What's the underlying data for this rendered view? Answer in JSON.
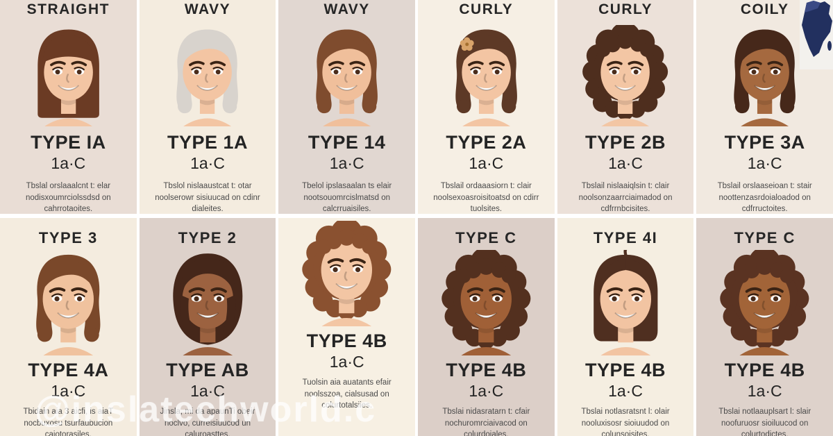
{
  "page": {
    "background": "#ffffff"
  },
  "watermark": {
    "text": "@inslatechworld.c"
  },
  "map_badge": {
    "icon": "africa-map-icon",
    "panel_color": "#f3f1ed",
    "shape_color": "#22305f"
  },
  "cards": [
    {
      "header": "STRAIGHT",
      "type": "TYPE IA",
      "sub": "1a·C",
      "desc": "Tbslal orslaaalcnt t: elar nodisxoumrciolssdsd on cahrrotaoites.",
      "bg": "#e9ddd5",
      "face": {
        "hair": "straight-bangs",
        "hair_color": "#6b3b24",
        "skin": "#f3c5a3"
      }
    },
    {
      "header": "WAVY",
      "type": "TYPE 1A",
      "sub": "1a·C",
      "desc": "Tbslol nislaaustcat t: otar noolserowr sisiuucad on cdinr dialeites.",
      "bg": "#f4ecdf",
      "face": {
        "hair": "wavy-long",
        "hair_color": "#d8d3cd",
        "skin": "#f3c5a3"
      }
    },
    {
      "header": "WAVY",
      "type": "TYPE 14",
      "sub": "1a·C",
      "desc": "Tbelol ipslasaalan ts elair nootsouomrcislmatsd on calcrruaisiles.",
      "bg": "#e1d7d1",
      "face": {
        "hair": "wavy-long",
        "hair_color": "#7f4c2e",
        "skin": "#f0bf9b"
      }
    },
    {
      "header": "CURLY",
      "type": "TYPE 2A",
      "sub": "1a·C",
      "desc": "Tbslail ordaaasiorn t: clair noolsexoasroisitoatsd on cdirr tuolsites.",
      "bg": "#f6efe4",
      "face": {
        "hair": "wavy-flower",
        "hair_color": "#5d3926",
        "skin": "#f3c5a3",
        "accent": "#d9a46a"
      }
    },
    {
      "header": "CURLY",
      "type": "TYPE 2B",
      "sub": "1a·C",
      "desc": "Tbslail nislaaiqlsin t: clair noolsonzaarrciaimadod on cdfrrnbcisites.",
      "bg": "#ece1d9",
      "face": {
        "hair": "curly-big",
        "hair_color": "#4e2e1e",
        "skin": "#f3c6a4"
      }
    },
    {
      "header": "COILY",
      "type": "TYPE 3A",
      "sub": "1a·C",
      "desc": "Tbslail orslaaseioan t: stair noottenzasrdoialoadod on cdfrructoites.",
      "bg": "#f1e9e0",
      "face": {
        "hair": "wavy-long",
        "hair_color": "#46281a",
        "skin": "#a5693f"
      }
    },
    {
      "header": "TYPE 3",
      "type": "TYPE 4A",
      "sub": "1a·C",
      "desc": "Tbidain aia 3 aicfi, is aiaT nocbuxosu tsurfaubucion caiotorasiles.",
      "bg": "#f4ecdf",
      "face": {
        "hair": "wavy-long",
        "hair_color": "#7a482a",
        "skin": "#f0c29e"
      }
    },
    {
      "header": "TYPE 2",
      "type": "TYPE AB",
      "sub": "1a·C",
      "desc": "Jinsla, mi da apaunTi obeir noclvo, curreisiuucod un caluroasttes.",
      "bg": "#ddd1ca",
      "face": {
        "hair": "bob-round",
        "hair_color": "#45271a",
        "skin": "#9c6240"
      }
    },
    {
      "header": "",
      "type": "TYPE 4B",
      "sub": "1a·C",
      "desc": "Tuolsin aia auatants efair noolsszoa, cialsusad on colurtotalsiies.",
      "bg": "#f7f0e3",
      "face": {
        "hair": "curly-big",
        "hair_color": "#8a5130",
        "skin": "#f3c6a4"
      }
    },
    {
      "header": "TYPE C",
      "type": "TYPE 4B",
      "sub": "1a·C",
      "desc": "Tbslai nidasratarn t: cfair nochuromrciaivacod on colurdoiales.",
      "bg": "#dccfc8",
      "face": {
        "hair": "curly-big",
        "hair_color": "#53301f",
        "skin": "#a06037"
      }
    },
    {
      "header": "TYPE 4I",
      "type": "TYPE 4B",
      "sub": "1a·C",
      "desc": "Tbslai notlasratsnt l: olair nooluxisosr sioiuudod on colunsoisites.",
      "bg": "#f5eee1",
      "face": {
        "hair": "straight-middle",
        "hair_color": "#4f2f20",
        "skin": "#f2c4a2"
      }
    },
    {
      "header": "TYPE C",
      "type": "TYPE 4B",
      "sub": "1a·C",
      "desc": "Tbslai notlaauplsart l: slair noofuruosr sioiluucod on colurtodictes.",
      "bg": "#ded2cb",
      "face": {
        "hair": "curly-big",
        "hair_color": "#5a3322",
        "skin": "#a26438"
      }
    }
  ]
}
